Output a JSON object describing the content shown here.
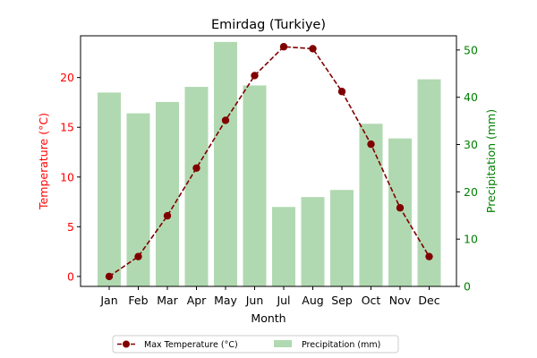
{
  "chart_data": {
    "type": "bar+line",
    "title": "Emirdag (Turkiye)",
    "xlabel": "Month",
    "ylabel_left": "Temperature (°C)",
    "ylabel_right": "Precipitation (mm)",
    "categories": [
      "Jan",
      "Feb",
      "Mar",
      "Apr",
      "May",
      "Jun",
      "Jul",
      "Aug",
      "Sep",
      "Oct",
      "Nov",
      "Dec"
    ],
    "left_axis": {
      "ylim": [
        -1.0,
        24.2
      ],
      "ticks": [
        0,
        5,
        10,
        15,
        20
      ],
      "color": "#ff0000"
    },
    "right_axis": {
      "ylim": [
        0,
        53
      ],
      "ticks": [
        0,
        10,
        20,
        30,
        40,
        50
      ],
      "color": "#008000"
    },
    "series": [
      {
        "name": "Max Temperature (°C)",
        "type": "line",
        "axis": "left",
        "color": "#800000",
        "marker": "circle",
        "linestyle": "dashed",
        "values": [
          0.0,
          2.0,
          6.1,
          10.9,
          15.7,
          20.2,
          23.1,
          22.9,
          18.6,
          13.3,
          6.9,
          2.0
        ]
      },
      {
        "name": "Precipitation (mm)",
        "type": "bar",
        "axis": "right",
        "color": "#b1d9b1",
        "values": [
          41.0,
          36.6,
          39.0,
          42.2,
          51.7,
          42.5,
          16.8,
          18.9,
          20.4,
          34.4,
          31.3,
          43.8
        ]
      }
    ],
    "legend": {
      "position": "bottom-center",
      "columns": 2
    },
    "grid": false
  }
}
